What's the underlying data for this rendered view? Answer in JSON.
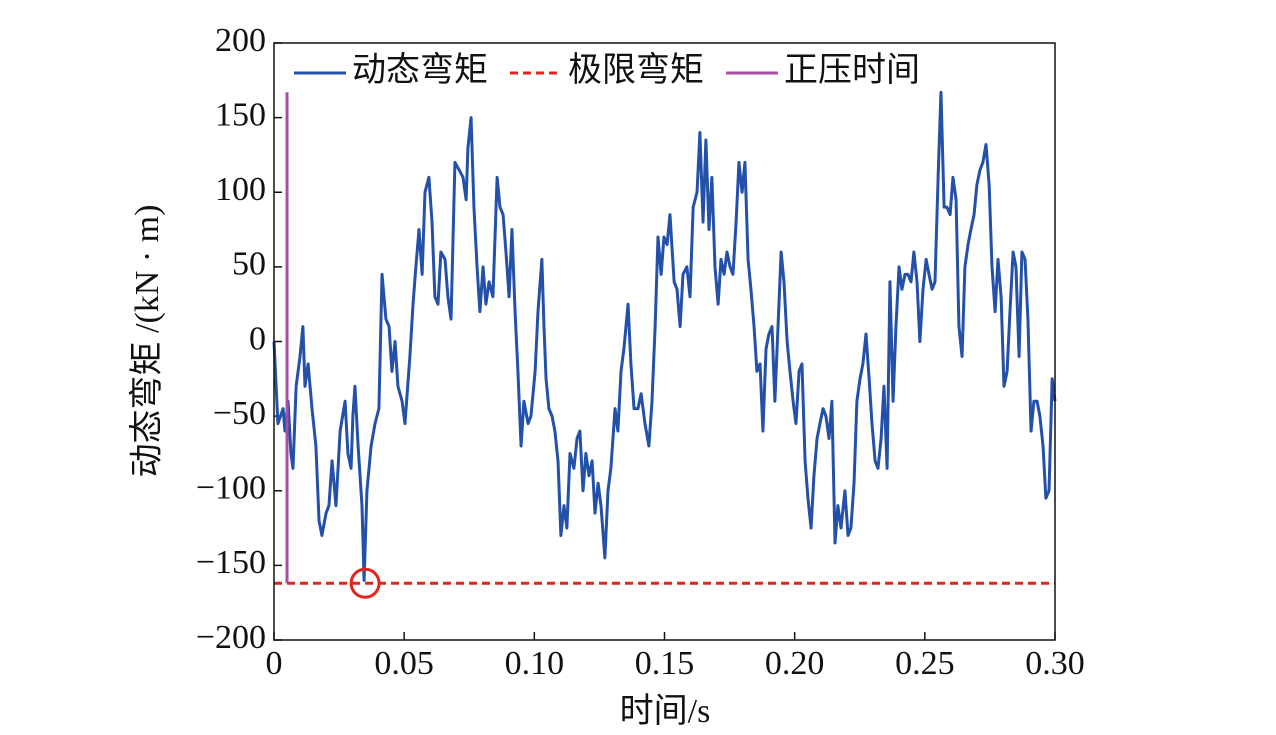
{
  "chart_data": {
    "type": "line",
    "xlabel": "时间/s",
    "ylabel": "动态弯矩 /(kN · m)",
    "xlim": [
      0,
      0.3
    ],
    "ylim": [
      -200,
      200
    ],
    "xticks": [
      0,
      0.05,
      {
        "value": 0.1,
        "label": "0.10"
      },
      0.15,
      {
        "value": 0.2,
        "label": "0.20"
      },
      0.25,
      {
        "value": 0.3,
        "label": "0.30"
      }
    ],
    "yticks": [
      {
        "value": -200,
        "label": "−200"
      },
      {
        "value": -150,
        "label": "−150"
      },
      {
        "value": -100,
        "label": "−100"
      },
      {
        "value": -50,
        "label": "−50"
      },
      0,
      50,
      100,
      150,
      200
    ],
    "legend": "top",
    "series": [
      {
        "name": "动态弯矩",
        "color": "#2350a8",
        "linestyle": "solid",
        "x": [
          0,
          0.0015,
          0.0035,
          0.0042,
          0.0054,
          0.0065,
          0.0073,
          0.0085,
          0.01,
          0.0111,
          0.0119,
          0.0131,
          0.0146,
          0.0161,
          0.0173,
          0.0184,
          0.02,
          0.0211,
          0.0223,
          0.0238,
          0.0254,
          0.0273,
          0.0284,
          0.0296,
          0.0303,
          0.0311,
          0.0323,
          0.0338,
          0.0346,
          0.0357,
          0.0373,
          0.0388,
          0.0403,
          0.0415,
          0.043,
          0.0442,
          0.0453,
          0.0465,
          0.0476,
          0.0492,
          0.0503,
          0.0522,
          0.0534,
          0.0545,
          0.0557,
          0.0569,
          0.058,
          0.0595,
          0.0607,
          0.0618,
          0.063,
          0.0641,
          0.0657,
          0.0668,
          0.068,
          0.0695,
          0.0711,
          0.0726,
          0.0738,
          0.0745,
          0.0757,
          0.0768,
          0.078,
          0.0791,
          0.0803,
          0.0814,
          0.0826,
          0.0841,
          0.0857,
          0.0868,
          0.088,
          0.0891,
          0.0903,
          0.0914,
          0.0926,
          0.0937,
          0.0949,
          0.096,
          0.0976,
          0.0987,
          0.1003,
          0.1014,
          0.1029,
          0.1037,
          0.1045,
          0.1056,
          0.1068,
          0.1079,
          0.1091,
          0.1102,
          0.1114,
          0.1125,
          0.1137,
          0.1152,
          0.1164,
          0.1175,
          0.1187,
          0.1198,
          0.121,
          0.1222,
          0.1233,
          0.1245,
          0.1256,
          0.1271,
          0.1283,
          0.1294,
          0.131,
          0.1321,
          0.1333,
          0.1344,
          0.136,
          0.1371,
          0.1383,
          0.1398,
          0.141,
          0.1425,
          0.144,
          0.1452,
          0.1464,
          0.1475,
          0.1487,
          0.1498,
          0.151,
          0.1521,
          0.1537,
          0.1548,
          0.156,
          0.1571,
          0.1586,
          0.1598,
          0.161,
          0.1625,
          0.1636,
          0.1648,
          0.1659,
          0.1671,
          0.1682,
          0.1694,
          0.1706,
          0.1717,
          0.1729,
          0.174,
          0.1752,
          0.1763,
          0.1775,
          0.1786,
          0.1798,
          0.1809,
          0.1821,
          0.1832,
          0.1844,
          0.1855,
          0.1867,
          0.1878,
          0.189,
          0.1901,
          0.1913,
          0.1924,
          0.1936,
          0.1948,
          0.1959,
          0.1971,
          0.1982,
          0.1994,
          0.2005,
          0.2017,
          0.2028,
          0.204,
          0.2051,
          0.2063,
          0.2074,
          0.2086,
          0.2097,
          0.2109,
          0.212,
          0.2132,
          0.2143,
          0.2155,
          0.2166,
          0.2178,
          0.2193,
          0.2205,
          0.2216,
          0.2228,
          0.2239,
          0.2251,
          0.2262,
          0.2274,
          0.2286,
          0.2297,
          0.2309,
          0.232,
          0.2332,
          0.2343,
          0.2355,
          0.2366,
          0.2378,
          0.2389,
          0.2401,
          0.2412,
          0.2424,
          0.2435,
          0.2447,
          0.2458,
          0.247,
          0.2481,
          0.2493,
          0.2505,
          0.2516,
          0.2528,
          0.2539,
          0.2551,
          0.2562,
          0.2574,
          0.2585,
          0.2597,
          0.2608,
          0.262,
          0.2631,
          0.2643,
          0.2654,
          0.2666,
          0.2677,
          0.2689,
          0.27,
          0.2712,
          0.2723,
          0.2735,
          0.2747,
          0.2758,
          0.277,
          0.2781,
          0.2793,
          0.2804,
          0.2816,
          0.2827,
          0.2839,
          0.285,
          0.2862,
          0.2873,
          0.2885,
          0.2896,
          0.2908,
          0.2919,
          0.2931,
          0.2942,
          0.2954,
          0.2965,
          0.2977,
          0.2989,
          0.3
        ],
        "values": [
          0,
          -55,
          -45,
          -60,
          -40,
          -75,
          -85,
          -30,
          -10,
          10,
          -30,
          -15,
          -45,
          -70,
          -120,
          -130,
          -115,
          -110,
          -80,
          -110,
          -60,
          -40,
          -75,
          -85,
          -50,
          -30,
          -70,
          -110,
          -160,
          -100,
          -70,
          -55,
          -45,
          45,
          15,
          10,
          -20,
          0,
          -30,
          -40,
          -55,
          -10,
          25,
          50,
          75,
          45,
          100,
          110,
          80,
          30,
          25,
          60,
          55,
          30,
          15,
          120,
          115,
          110,
          95,
          130,
          150,
          90,
          50,
          20,
          50,
          25,
          40,
          30,
          110,
          90,
          85,
          60,
          30,
          75,
          20,
          -20,
          -70,
          -40,
          -55,
          -50,
          -20,
          20,
          55,
          10,
          -25,
          -45,
          -50,
          -60,
          -80,
          -130,
          -110,
          -125,
          -75,
          -85,
          -65,
          -60,
          -100,
          -75,
          -90,
          -80,
          -115,
          -95,
          -110,
          -145,
          -100,
          -85,
          -45,
          -60,
          -20,
          -5,
          25,
          -15,
          -45,
          -45,
          -35,
          -55,
          -70,
          -40,
          10,
          70,
          45,
          70,
          65,
          85,
          40,
          35,
          10,
          45,
          50,
          30,
          90,
          100,
          140,
          80,
          135,
          75,
          110,
          50,
          25,
          55,
          45,
          60,
          50,
          45,
          80,
          120,
          100,
          120,
          55,
          35,
          10,
          -20,
          -15,
          -60,
          -5,
          5,
          10,
          -40,
          10,
          60,
          40,
          0,
          -20,
          -40,
          -55,
          -20,
          -15,
          -80,
          -105,
          -125,
          -90,
          -65,
          -55,
          -45,
          -50,
          -65,
          -40,
          -135,
          -110,
          -125,
          -100,
          -130,
          -125,
          -95,
          -40,
          -25,
          -15,
          5,
          -25,
          -55,
          -80,
          -85,
          -65,
          -30,
          -85,
          40,
          -40,
          10,
          50,
          35,
          45,
          45,
          40,
          60,
          40,
          0,
          35,
          55,
          45,
          35,
          40,
          110,
          167,
          90,
          90,
          85,
          110,
          95,
          10,
          -10,
          50,
          65,
          75,
          85,
          105,
          115,
          120,
          132,
          105,
          50,
          20,
          55,
          30,
          -30,
          -20,
          20,
          60,
          50,
          -10,
          60,
          55,
          15,
          -60,
          -40,
          -40,
          -50,
          -70,
          -105,
          -100,
          -25,
          -40
        ]
      },
      {
        "name": "极限弯矩",
        "color": "#e3241b",
        "linestyle": "dashed",
        "x": [
          0,
          0.3
        ],
        "values": [
          -162,
          -162
        ]
      },
      {
        "name": "正压时间",
        "color": "#a94ea3",
        "linestyle": "solid",
        "x": [
          0.005,
          0.005
        ],
        "values": [
          -162,
          167
        ]
      }
    ],
    "highlight": {
      "x": 0.035,
      "y": -162,
      "color": "#e3241b"
    }
  }
}
